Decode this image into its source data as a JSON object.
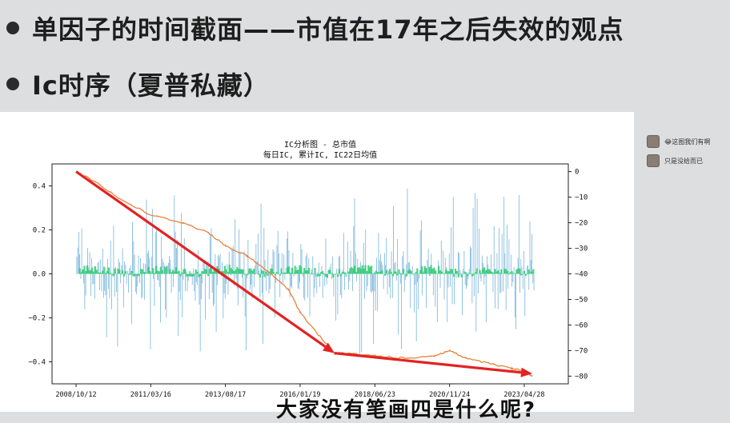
{
  "slide": {
    "bullets": [
      "单因子的时间截面——市值在17年之后失效的观点",
      "Ic时序（夏普私藏）"
    ],
    "caption": "大家没有笔画四是什么呢?"
  },
  "comments": [
    {
      "text": "😂这图我们有啊"
    },
    {
      "text": "只是没给而已"
    }
  ],
  "chart_data": {
    "type": "line",
    "title": "IC分析图 - 总市值",
    "subtitle": "每日IC, 累计IC, IC22日均值",
    "x_ticks": [
      "2008/10/12",
      "2011/03/16",
      "2013/08/17",
      "2016/01/19",
      "2018/06/23",
      "2020/11/24",
      "2023/04/28"
    ],
    "left_axis": {
      "ticks": [
        "0.4",
        "0.2",
        "0.0",
        "−0.2",
        "−0.4"
      ],
      "ylim": [
        -0.5,
        0.5
      ]
    },
    "right_axis": {
      "ticks": [
        "0",
        "−10",
        "−20",
        "−30",
        "−40",
        "−50",
        "−60",
        "−70",
        "−80"
      ],
      "ylim": [
        -83,
        3
      ]
    },
    "series": [
      {
        "name": "",
        "kind": "daily_ic_bars",
        "color": "#5fa8d3"
      },
      {
        "name": "",
        "kind": "ic22_mean_fill",
        "color": "#2ecc71"
      },
      {
        "name": "",
        "kind": "cumulative_ic",
        "color": "#e8813a",
        "x": [
          "2008/10/12",
          "2009/06/01",
          "2010/04/01",
          "2011/03/16",
          "2012/04/01",
          "2013/02/01",
          "2013/08/17",
          "2014/05/01",
          "2015/01/01",
          "2015/09/01",
          "2016/01/19",
          "2016/08/01",
          "2017/03/01",
          "2017/06/01",
          "2018/06/23",
          "2019/06/01",
          "2020/06/01",
          "2020/11/24",
          "2021/06/01",
          "2022/03/01",
          "2022/12/01",
          "2023/04/28",
          "2023/08/01"
        ],
        "y": [
          0,
          -4,
          -11,
          -17,
          -20,
          -24,
          -29,
          -33,
          -39,
          -46,
          -55,
          -63,
          -71,
          -71,
          -72,
          -73,
          -72,
          -70,
          -73,
          -75,
          -77,
          -78,
          -80
        ]
      }
    ],
    "annotations": [
      {
        "kind": "arrow",
        "color": "#e32222",
        "from": [
          "2008/10/12",
          0
        ],
        "to": [
          "2017/03/01",
          -71
        ]
      },
      {
        "kind": "arrow",
        "color": "#e32222",
        "from": [
          "2017/03/01",
          -71
        ],
        "to": [
          "2023/08/01",
          -79
        ]
      }
    ],
    "grid": false
  }
}
